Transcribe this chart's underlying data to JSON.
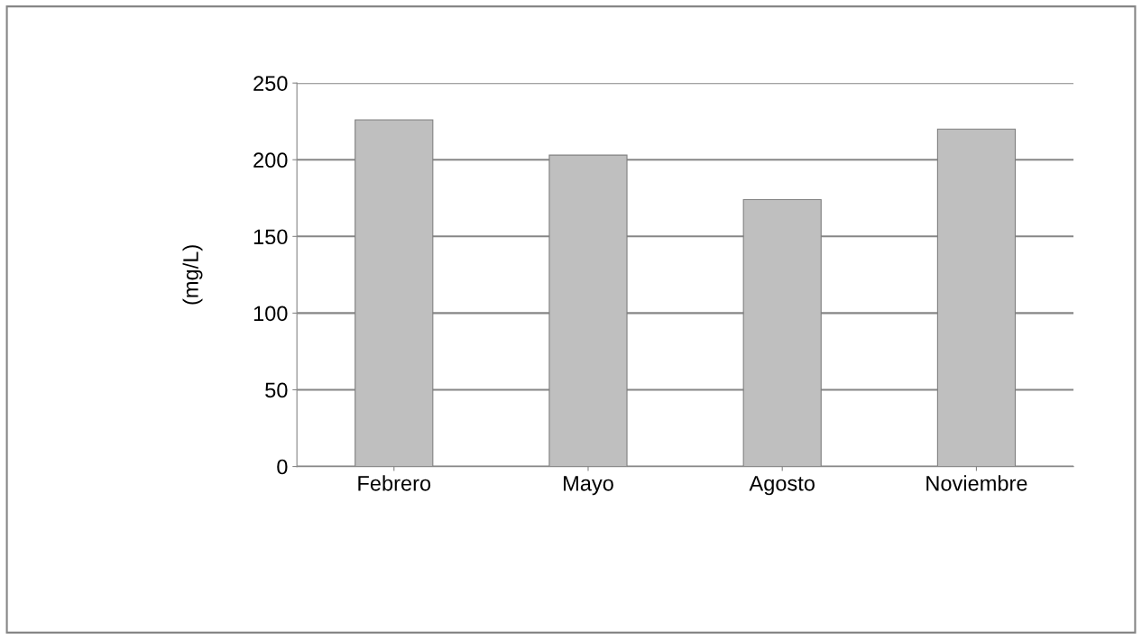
{
  "chart_data": {
    "type": "bar",
    "ylabel": "(mg/L)",
    "categories": [
      "Febrero",
      "Mayo",
      "Agosto",
      "Noviembre"
    ],
    "values": [
      226,
      203,
      174,
      220
    ],
    "color": "#bfbfbf",
    "ylim": [
      0,
      250
    ],
    "yticks": [
      0,
      50,
      100,
      150,
      200,
      250
    ],
    "grid": "y"
  }
}
